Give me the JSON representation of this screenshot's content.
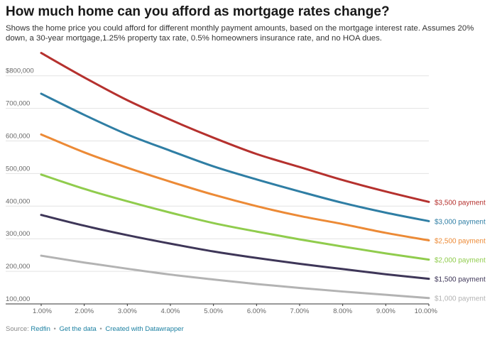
{
  "title": "How much home can you afford as mortgage rates change?",
  "subtitle": "Shows the home price you could afford for different monthly payment amounts, based on the mortgage interest rate. Assumes 20% down, a 30-year mortgage,1.25% property tax rate, 0.5% homeowners insurance rate, and no HOA dues.",
  "footer": {
    "source_prefix": "Source:",
    "source": "Redfin",
    "sep1": "•",
    "get_data": "Get the data",
    "sep2": "•",
    "created_with": "Created with Datawrapper"
  },
  "chart_data": {
    "type": "line",
    "title": "How much home can you afford as mortgage rates change?",
    "xlabel": "",
    "ylabel": "",
    "x": [
      1,
      2,
      3,
      4,
      5,
      6,
      7,
      8,
      9,
      10
    ],
    "x_tick_labels": [
      "1.00%",
      "2.00%",
      "3.00%",
      "4.00%",
      "5.00%",
      "6.00%",
      "7.00%",
      "8.00%",
      "9.00%",
      "10.00%"
    ],
    "y_ticks": [
      100000,
      200000,
      300000,
      400000,
      500000,
      600000,
      700000,
      800000
    ],
    "y_tick_labels": [
      "100,000",
      "200,000",
      "300,000",
      "400,000",
      "500,000",
      "600,000",
      "700,000",
      "$800,000"
    ],
    "xlim": [
      1,
      10
    ],
    "ylim": [
      100000,
      880000
    ],
    "grid": true,
    "legend": "inline labels at right end of lines",
    "series": [
      {
        "name": "$3,500 payment",
        "color": "#b5312e",
        "values": [
          870000,
          795000,
          725000,
          665000,
          610000,
          560000,
          520000,
          480000,
          445000,
          413000
        ]
      },
      {
        "name": "$3,000 payment",
        "color": "#2f7ea4",
        "values": [
          745000,
          680000,
          620000,
          570000,
          522000,
          482000,
          445000,
          410000,
          380000,
          354000
        ]
      },
      {
        "name": "$2,500 payment",
        "color": "#ec8a36",
        "values": [
          620000,
          565000,
          518000,
          475000,
          435000,
          400000,
          370000,
          345000,
          318000,
          295000
        ]
      },
      {
        "name": "$2,000 payment",
        "color": "#90cc4d",
        "values": [
          497000,
          453000,
          415000,
          380000,
          348000,
          322000,
          298000,
          276000,
          255000,
          236000
        ]
      },
      {
        "name": "$1,500 payment",
        "color": "#3e3658",
        "values": [
          373000,
          340000,
          311000,
          285000,
          261000,
          241000,
          223000,
          207000,
          191000,
          177000
        ]
      },
      {
        "name": "$1,000 payment",
        "color": "#b3b3b3",
        "values": [
          248000,
          227000,
          208000,
          190000,
          175000,
          161000,
          149000,
          138000,
          128000,
          118000
        ]
      }
    ]
  }
}
